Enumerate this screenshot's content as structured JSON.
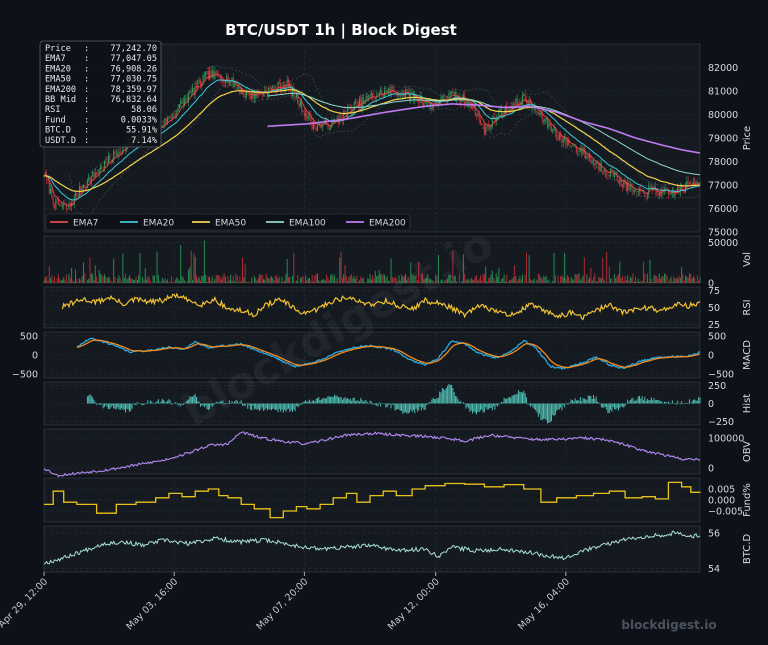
{
  "chart_data": {
    "type": "line",
    "title": "BTC/USDT  1h  |  Block Digest",
    "watermark": "blockdigest.io",
    "footer": "blockdigest.io",
    "colors": {
      "background": "#0e1117",
      "panel": "#151a21",
      "grid": "#2b323b",
      "text": "#d6d9de",
      "up": "#2ca05a",
      "down": "#c8323a",
      "ema7": "#e34a4a",
      "ema20": "#3cc7d9",
      "ema50": "#f2d24a",
      "ema100": "#8fd7cc",
      "ema200": "#c17af2",
      "rsi": "#f2c230",
      "macd": "#2aa8e0",
      "signal": "#f28c1c",
      "hist": "#56d3c6",
      "obv": "#b58af2",
      "fund": "#e8c21a",
      "btcd": "#a9e0dc"
    },
    "info_box": [
      {
        "label": "Price",
        "value": "77,242.70"
      },
      {
        "label": "EMA7",
        "value": "77,047.05"
      },
      {
        "label": "EMA20",
        "value": "76,908.26"
      },
      {
        "label": "EMA50",
        "value": "77,030.75"
      },
      {
        "label": "EMA200",
        "value": "78,359.97"
      },
      {
        "label": "BB Mid",
        "value": "76,832.64"
      },
      {
        "label": "RSI",
        "value": "58.06"
      },
      {
        "label": "Fund",
        "value": "0.0033%"
      },
      {
        "label": "BTC.D",
        "value": "55.91%"
      },
      {
        "label": "USDT.D",
        "value": "7.14%"
      }
    ],
    "legend": [
      "EMA7",
      "EMA20",
      "EMA50",
      "EMA100",
      "EMA200"
    ],
    "x_ticks": [
      "Apr 29, 12:00",
      "May 03, 16:00",
      "May 07, 20:00",
      "May 12, 00:00",
      "May 16, 04:00"
    ],
    "panels": {
      "price": {
        "ylabel": "Price",
        "ylim": [
          75000,
          83000
        ],
        "ticks": [
          "75000",
          "76000",
          "77000",
          "78000",
          "79000",
          "80000",
          "81000",
          "82000"
        ]
      },
      "volume": {
        "ylabel": "Vol",
        "ticks": [
          "0",
          "50000"
        ]
      },
      "rsi": {
        "ylabel": "RSI",
        "ylim": [
          20,
          80
        ],
        "ticks": [
          "25",
          "50",
          "75"
        ]
      },
      "macd": {
        "ylabel": "MACD",
        "ylim": [
          -600,
          600
        ],
        "ticks": [
          "500",
          "0",
          "−500"
        ]
      },
      "hist": {
        "ylabel": "Hist",
        "ylim": [
          -300,
          300
        ],
        "ticks": [
          "250",
          "0",
          "−250"
        ]
      },
      "obv": {
        "ylabel": "OBV",
        "ylim": [
          -20000,
          130000
        ],
        "ticks": [
          "100000",
          "0"
        ]
      },
      "fund": {
        "ylabel": "Fund%",
        "ylim": [
          -0.01,
          0.01
        ],
        "ticks": [
          "0.005",
          "0.000",
          "−0.005"
        ]
      },
      "btcd": {
        "ylabel": "BTC.D",
        "ylim": [
          53.8,
          56.4
        ],
        "ticks": [
          "56",
          "54"
        ]
      }
    },
    "price_keys": [
      [
        0,
        77500
      ],
      [
        8,
        76200
      ],
      [
        18,
        76000
      ],
      [
        30,
        77000
      ],
      [
        45,
        77800
      ],
      [
        60,
        78600
      ],
      [
        75,
        79000
      ],
      [
        95,
        79800
      ],
      [
        110,
        80800
      ],
      [
        125,
        81700
      ],
      [
        140,
        81500
      ],
      [
        155,
        80800
      ],
      [
        170,
        81000
      ],
      [
        185,
        81300
      ],
      [
        195,
        80400
      ],
      [
        205,
        79500
      ],
      [
        220,
        79600
      ],
      [
        235,
        80300
      ],
      [
        250,
        80800
      ],
      [
        265,
        81000
      ],
      [
        280,
        80800
      ],
      [
        295,
        80400
      ],
      [
        310,
        80800
      ],
      [
        325,
        80500
      ],
      [
        335,
        79300
      ],
      [
        345,
        80000
      ],
      [
        355,
        80300
      ],
      [
        365,
        80700
      ],
      [
        380,
        79800
      ],
      [
        395,
        78900
      ],
      [
        410,
        78400
      ],
      [
        422,
        77800
      ],
      [
        432,
        77500
      ],
      [
        442,
        77000
      ],
      [
        452,
        76600
      ],
      [
        462,
        76800
      ],
      [
        475,
        76600
      ],
      [
        488,
        76900
      ],
      [
        499,
        77243
      ]
    ],
    "ema200_keys": [
      [
        170,
        79500
      ],
      [
        200,
        79600
      ],
      [
        230,
        79800
      ],
      [
        260,
        80100
      ],
      [
        290,
        80350
      ],
      [
        310,
        80450
      ],
      [
        330,
        80400
      ],
      [
        350,
        80300
      ],
      [
        370,
        80350
      ],
      [
        390,
        80100
      ],
      [
        410,
        79700
      ],
      [
        430,
        79400
      ],
      [
        450,
        79000
      ],
      [
        470,
        78700
      ],
      [
        485,
        78500
      ],
      [
        499,
        78360
      ]
    ],
    "rsi_keys": [
      [
        0,
        40
      ],
      [
        10,
        48
      ],
      [
        20,
        55
      ],
      [
        30,
        62
      ],
      [
        40,
        58
      ],
      [
        50,
        65
      ],
      [
        60,
        55
      ],
      [
        70,
        62
      ],
      [
        80,
        58
      ],
      [
        90,
        60
      ],
      [
        100,
        68
      ],
      [
        110,
        60
      ],
      [
        120,
        55
      ],
      [
        130,
        62
      ],
      [
        140,
        48
      ],
      [
        150,
        45
      ],
      [
        160,
        40
      ],
      [
        170,
        55
      ],
      [
        180,
        62
      ],
      [
        190,
        48
      ],
      [
        200,
        40
      ],
      [
        210,
        50
      ],
      [
        220,
        60
      ],
      [
        230,
        65
      ],
      [
        240,
        58
      ],
      [
        250,
        55
      ],
      [
        260,
        60
      ],
      [
        270,
        52
      ],
      [
        280,
        48
      ],
      [
        290,
        60
      ],
      [
        300,
        56
      ],
      [
        310,
        50
      ],
      [
        320,
        38
      ],
      [
        330,
        52
      ],
      [
        340,
        48
      ],
      [
        350,
        40
      ],
      [
        360,
        42
      ],
      [
        370,
        55
      ],
      [
        380,
        45
      ],
      [
        390,
        38
      ],
      [
        400,
        42
      ],
      [
        410,
        36
      ],
      [
        420,
        45
      ],
      [
        430,
        55
      ],
      [
        440,
        42
      ],
      [
        450,
        48
      ],
      [
        460,
        50
      ],
      [
        470,
        45
      ],
      [
        480,
        55
      ],
      [
        490,
        52
      ],
      [
        499,
        58
      ]
    ],
    "macd_keys": [
      [
        0,
        -50
      ],
      [
        20,
        100
      ],
      [
        35,
        430
      ],
      [
        50,
        300
      ],
      [
        65,
        80
      ],
      [
        80,
        120
      ],
      [
        95,
        200
      ],
      [
        105,
        150
      ],
      [
        115,
        330
      ],
      [
        125,
        200
      ],
      [
        140,
        250
      ],
      [
        150,
        280
      ],
      [
        160,
        150
      ],
      [
        175,
        -50
      ],
      [
        190,
        -300
      ],
      [
        205,
        -200
      ],
      [
        215,
        -50
      ],
      [
        230,
        150
      ],
      [
        245,
        250
      ],
      [
        255,
        200
      ],
      [
        265,
        150
      ],
      [
        280,
        -150
      ],
      [
        290,
        -250
      ],
      [
        300,
        -80
      ],
      [
        310,
        350
      ],
      [
        320,
        300
      ],
      [
        330,
        50
      ],
      [
        345,
        -80
      ],
      [
        355,
        100
      ],
      [
        365,
        380
      ],
      [
        375,
        150
      ],
      [
        385,
        -300
      ],
      [
        395,
        -350
      ],
      [
        410,
        -200
      ],
      [
        420,
        -50
      ],
      [
        430,
        -250
      ],
      [
        440,
        -350
      ],
      [
        455,
        -150
      ],
      [
        465,
        -80
      ],
      [
        475,
        -50
      ],
      [
        490,
        -30
      ],
      [
        499,
        60
      ]
    ],
    "obv_keys": [
      [
        0,
        0
      ],
      [
        10,
        -25000
      ],
      [
        30,
        -15000
      ],
      [
        50,
        -5000
      ],
      [
        70,
        10000
      ],
      [
        90,
        25000
      ],
      [
        110,
        50000
      ],
      [
        125,
        75000
      ],
      [
        140,
        80000
      ],
      [
        150,
        120000
      ],
      [
        165,
        100000
      ],
      [
        180,
        90000
      ],
      [
        200,
        80000
      ],
      [
        215,
        95000
      ],
      [
        230,
        110000
      ],
      [
        250,
        115000
      ],
      [
        270,
        110000
      ],
      [
        290,
        105000
      ],
      [
        305,
        100000
      ],
      [
        320,
        90000
      ],
      [
        340,
        110000
      ],
      [
        360,
        100000
      ],
      [
        375,
        95000
      ],
      [
        390,
        95000
      ],
      [
        410,
        100000
      ],
      [
        425,
        95000
      ],
      [
        440,
        80000
      ],
      [
        455,
        60000
      ],
      [
        470,
        45000
      ],
      [
        485,
        30000
      ],
      [
        499,
        30000
      ]
    ],
    "fund_steps": [
      [
        0,
        -0.002
      ],
      [
        7,
        0.004
      ],
      [
        15,
        -0.001
      ],
      [
        25,
        -0.002
      ],
      [
        40,
        -0.006
      ],
      [
        55,
        -0.002
      ],
      [
        70,
        -0.001
      ],
      [
        85,
        0.001
      ],
      [
        95,
        0.003
      ],
      [
        105,
        0.0015
      ],
      [
        115,
        0.004
      ],
      [
        125,
        0.005
      ],
      [
        133,
        0.002
      ],
      [
        140,
        0.001
      ],
      [
        150,
        -0.002
      ],
      [
        160,
        -0.004
      ],
      [
        172,
        -0.008
      ],
      [
        182,
        -0.005
      ],
      [
        192,
        -0.003
      ],
      [
        200,
        -0.004
      ],
      [
        210,
        -0.002
      ],
      [
        220,
        0.001
      ],
      [
        230,
        0.003
      ],
      [
        238,
        -0.001
      ],
      [
        248,
        0.002
      ],
      [
        258,
        0.004
      ],
      [
        268,
        0.002
      ],
      [
        280,
        0.005
      ],
      [
        290,
        0.0065
      ],
      [
        305,
        0.0075
      ],
      [
        320,
        0.0072
      ],
      [
        335,
        0.006
      ],
      [
        350,
        0.007
      ],
      [
        365,
        0.005
      ],
      [
        378,
        -0.001
      ],
      [
        390,
        0.001
      ],
      [
        405,
        0.002
      ],
      [
        418,
        0.003
      ],
      [
        430,
        0.004
      ],
      [
        442,
        0.001
      ],
      [
        455,
        0.0015
      ],
      [
        465,
        0.0005
      ],
      [
        475,
        0.008
      ],
      [
        485,
        0.006
      ],
      [
        492,
        0.0035
      ],
      [
        499,
        0.0033
      ]
    ],
    "btcd_keys": [
      [
        0,
        54.3
      ],
      [
        15,
        54.6
      ],
      [
        30,
        55.0
      ],
      [
        45,
        55.4
      ],
      [
        60,
        55.5
      ],
      [
        75,
        55.3
      ],
      [
        90,
        55.6
      ],
      [
        110,
        55.4
      ],
      [
        130,
        55.7
      ],
      [
        150,
        55.5
      ],
      [
        170,
        55.6
      ],
      [
        190,
        55.3
      ],
      [
        210,
        55.1
      ],
      [
        230,
        55.2
      ],
      [
        250,
        55.3
      ],
      [
        270,
        55.0
      ],
      [
        290,
        55.1
      ],
      [
        300,
        54.7
      ],
      [
        310,
        55.2
      ],
      [
        330,
        55.0
      ],
      [
        350,
        55.1
      ],
      [
        370,
        54.9
      ],
      [
        385,
        54.7
      ],
      [
        395,
        54.6
      ],
      [
        410,
        55.0
      ],
      [
        425,
        55.3
      ],
      [
        440,
        55.6
      ],
      [
        455,
        55.8
      ],
      [
        470,
        55.9
      ],
      [
        480,
        56.0
      ],
      [
        490,
        55.8
      ],
      [
        499,
        55.9
      ]
    ]
  }
}
